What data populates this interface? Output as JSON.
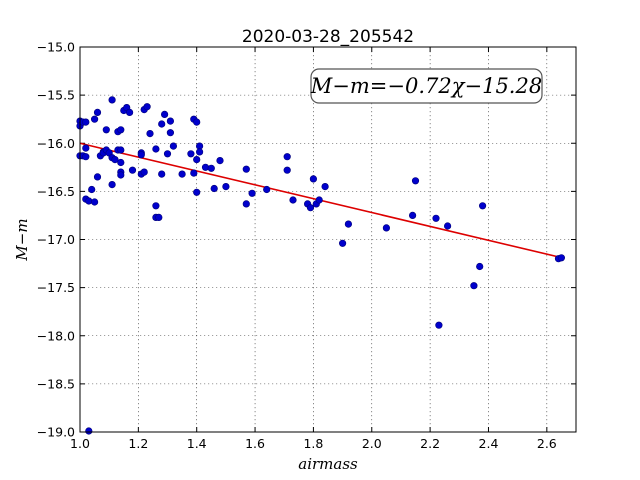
{
  "chart_data": {
    "type": "scatter",
    "title": "2020-03-28_205542",
    "xlabel": "airmass",
    "ylabel": "M−m",
    "xlim": [
      1.0,
      2.7
    ],
    "ylim": [
      -19.0,
      -15.0
    ],
    "xticks": [
      "1.0",
      "1.2",
      "1.4",
      "1.6",
      "1.8",
      "2.0",
      "2.2",
      "2.4",
      "2.6"
    ],
    "yticks": [
      "−15.0",
      "−15.5",
      "−16.0",
      "−16.5",
      "−17.0",
      "−17.5",
      "−18.0",
      "−18.5",
      "−19.0"
    ],
    "grid": true,
    "annotation": "M−m=−0.72χ−15.28",
    "annotation_placement": "top-right",
    "fit": {
      "slope": -0.72,
      "intercept": -15.28,
      "x_range": [
        1.0,
        2.65
      ],
      "color": "#dd0000"
    },
    "marker_color": "#0000cc",
    "points": [
      [
        1.0,
        -15.77
      ],
      [
        1.0,
        -15.82
      ],
      [
        1.0,
        -16.13
      ],
      [
        1.01,
        -15.78
      ],
      [
        1.01,
        -16.13
      ],
      [
        1.02,
        -16.05
      ],
      [
        1.02,
        -16.14
      ],
      [
        1.02,
        -15.78
      ],
      [
        1.02,
        -16.58
      ],
      [
        1.03,
        -16.6
      ],
      [
        1.03,
        -18.99
      ],
      [
        1.04,
        -16.48
      ],
      [
        1.05,
        -16.61
      ],
      [
        1.05,
        -15.75
      ],
      [
        1.06,
        -15.68
      ],
      [
        1.06,
        -16.35
      ],
      [
        1.07,
        -16.13
      ],
      [
        1.08,
        -16.09
      ],
      [
        1.08,
        -16.1
      ],
      [
        1.09,
        -15.86
      ],
      [
        1.09,
        -16.07
      ],
      [
        1.1,
        -16.1
      ],
      [
        1.11,
        -16.15
      ],
      [
        1.11,
        -15.55
      ],
      [
        1.11,
        -16.43
      ],
      [
        1.12,
        -16.17
      ],
      [
        1.13,
        -15.88
      ],
      [
        1.13,
        -16.07
      ],
      [
        1.14,
        -16.07
      ],
      [
        1.14,
        -16.2
      ],
      [
        1.14,
        -16.3
      ],
      [
        1.14,
        -16.33
      ],
      [
        1.14,
        -15.86
      ],
      [
        1.15,
        -15.66
      ],
      [
        1.16,
        -15.63
      ],
      [
        1.17,
        -15.68
      ],
      [
        1.18,
        -16.28
      ],
      [
        1.21,
        -16.1
      ],
      [
        1.21,
        -16.12
      ],
      [
        1.21,
        -16.32
      ],
      [
        1.22,
        -15.65
      ],
      [
        1.22,
        -16.3
      ],
      [
        1.23,
        -15.62
      ],
      [
        1.24,
        -15.9
      ],
      [
        1.26,
        -16.06
      ],
      [
        1.26,
        -16.65
      ],
      [
        1.26,
        -16.77
      ],
      [
        1.27,
        -16.77
      ],
      [
        1.28,
        -15.8
      ],
      [
        1.28,
        -16.32
      ],
      [
        1.29,
        -15.7
      ],
      [
        1.3,
        -16.11
      ],
      [
        1.31,
        -15.77
      ],
      [
        1.31,
        -15.89
      ],
      [
        1.32,
        -16.03
      ],
      [
        1.35,
        -16.32
      ],
      [
        1.38,
        -16.11
      ],
      [
        1.39,
        -15.75
      ],
      [
        1.39,
        -16.31
      ],
      [
        1.4,
        -15.78
      ],
      [
        1.4,
        -16.17
      ],
      [
        1.4,
        -16.51
      ],
      [
        1.41,
        -16.03
      ],
      [
        1.41,
        -16.09
      ],
      [
        1.43,
        -16.25
      ],
      [
        1.45,
        -16.26
      ],
      [
        1.46,
        -16.47
      ],
      [
        1.48,
        -16.18
      ],
      [
        1.5,
        -16.45
      ],
      [
        1.57,
        -16.27
      ],
      [
        1.57,
        -16.63
      ],
      [
        1.59,
        -16.52
      ],
      [
        1.64,
        -16.48
      ],
      [
        1.71,
        -16.14
      ],
      [
        1.71,
        -16.28
      ],
      [
        1.73,
        -16.59
      ],
      [
        1.78,
        -16.63
      ],
      [
        1.79,
        -16.67
      ],
      [
        1.8,
        -16.37
      ],
      [
        1.81,
        -16.63
      ],
      [
        1.82,
        -16.59
      ],
      [
        1.84,
        -16.45
      ],
      [
        1.9,
        -17.04
      ],
      [
        1.92,
        -16.84
      ],
      [
        2.05,
        -16.88
      ],
      [
        2.14,
        -16.75
      ],
      [
        2.15,
        -16.39
      ],
      [
        2.22,
        -16.78
      ],
      [
        2.23,
        -17.89
      ],
      [
        2.26,
        -16.86
      ],
      [
        2.35,
        -17.48
      ],
      [
        2.37,
        -17.28
      ],
      [
        2.38,
        -16.65
      ],
      [
        2.64,
        -17.2
      ],
      [
        2.65,
        -17.19
      ]
    ]
  }
}
